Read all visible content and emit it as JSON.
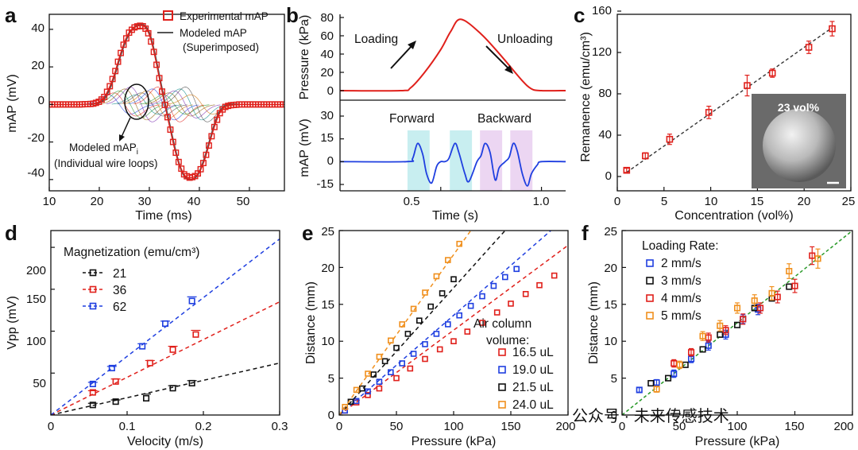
{
  "panels": {
    "a": {
      "label": "a",
      "xlabel": "Time (ms)",
      "ylabel": "mAP (mV)",
      "x_ticks": [
        "10",
        "20",
        "30",
        "40",
        "50"
      ],
      "y_ticks": [
        "40",
        "20",
        "0",
        "-20",
        "-40"
      ],
      "legend": {
        "experimental": "Experimental mAP",
        "modeled_1": "Modeled mAP",
        "modeled_2": "(Superimposed)"
      },
      "annotation_1": "Modeled mAP",
      "annotation_1_sub": "i",
      "annotation_2": "(Individual wire loops)",
      "colors": {
        "experimental": "#e0201b",
        "modeled": "#555555"
      }
    },
    "b": {
      "label": "b",
      "top_ylabel": "Pressure (kPa)",
      "top_ticks": [
        "80",
        "60",
        "40",
        "20",
        "0"
      ],
      "loading": "Loading",
      "unloading": "Unloading",
      "bottom_ylabel": "mAP (mV)",
      "bottom_ticks": [
        "30",
        "15",
        "0",
        "-15"
      ],
      "forward": "Forward",
      "backward": "Backward",
      "xlabel": "Time (s)",
      "x_ticks": [
        "0.5",
        "1.0"
      ],
      "colors": {
        "pressure": "#e0201b",
        "signal": "#1f3fe0",
        "forward_band": "#c8eef0",
        "backward_band": "#ecd6f2"
      }
    },
    "c": {
      "label": "c",
      "xlabel": "Concentration (vol%)",
      "ylabel": "Remanence (emu/cm³)",
      "x_ticks": [
        "0",
        "5",
        "10",
        "15",
        "20",
        "25"
      ],
      "y_ticks": [
        "0",
        "40",
        "80",
        "120",
        "160"
      ],
      "inset_label": "23 vol%",
      "color": "#e0201b"
    },
    "d": {
      "label": "d",
      "xlabel": "Velocity (m/s)",
      "ylabel": "Vpp (mV)",
      "x_ticks": [
        "0",
        "0.1",
        "0.2",
        "0.3"
      ],
      "y_ticks": [
        "50",
        "100",
        "150",
        "200"
      ],
      "legend_title": "Magnetization (emu/cm³)",
      "series_labels": [
        "21",
        "36",
        "62"
      ],
      "colors": [
        "#111111",
        "#e0201b",
        "#1f3fe0"
      ]
    },
    "e": {
      "label": "e",
      "xlabel": "Pressure (kPa)",
      "ylabel": "Distance (mm)",
      "x_ticks": [
        "0",
        "50",
        "100",
        "150",
        "200"
      ],
      "y_ticks": [
        "0",
        "5",
        "10",
        "15",
        "20",
        "25"
      ],
      "legend_title_1": "Air column",
      "legend_title_2": "volume:",
      "series_labels": [
        "16.5 uL",
        "19.0 uL",
        "21.5 uL",
        "24.0 uL"
      ],
      "colors": [
        "#e0201b",
        "#1f3fe0",
        "#111111",
        "#f0901e"
      ]
    },
    "f": {
      "label": "f",
      "xlabel": "Pressure (kPa)",
      "ylabel": "Distance (mm)",
      "x_ticks": [
        "0",
        "50",
        "100",
        "150",
        "200"
      ],
      "y_ticks": [
        "0",
        "5",
        "10",
        "15",
        "20",
        "25"
      ],
      "legend_title": "Loading Rate:",
      "series_labels": [
        "2 mm/s",
        "3 mm/s",
        "4 mm/s",
        "5 mm/s"
      ],
      "colors": [
        "#1f3fe0",
        "#111111",
        "#e0201b",
        "#f0901e"
      ],
      "fit_color": "#2a9a2a"
    }
  },
  "watermark": "公众号 · 未来传感技术",
  "chart_data": [
    {
      "panel": "a",
      "type": "line",
      "title": "",
      "xlabel": "Time (ms)",
      "ylabel": "mAP (mV)",
      "xlim": [
        10,
        57
      ],
      "ylim": [
        -46,
        48
      ],
      "series": [
        {
          "name": "Experimental mAP",
          "x": [
            10,
            12,
            14,
            16,
            18,
            19,
            20,
            21,
            22,
            23,
            24,
            25,
            26,
            27,
            28,
            29,
            30,
            31,
            32,
            33,
            34,
            35,
            36,
            37,
            38,
            39,
            40,
            41,
            42,
            43,
            44,
            45,
            46,
            48,
            50,
            52,
            54,
            56,
            57
          ],
          "y": [
            0,
            0,
            0,
            0,
            0.2,
            0.5,
            1.5,
            4,
            9,
            16,
            25,
            33,
            38.5,
            41,
            42,
            41.5,
            37,
            27,
            14,
            1,
            -11,
            -23,
            -32,
            -37.5,
            -39,
            -38.5,
            -36,
            -30,
            -21,
            -12,
            -5,
            -1.5,
            -0.5,
            0,
            0,
            0,
            0,
            0,
            0
          ]
        },
        {
          "name": "Modeled mAP (Superimposed)",
          "x": [
            18,
            20,
            21,
            22,
            23,
            24,
            25,
            26,
            27,
            28,
            29,
            30,
            31,
            32,
            33,
            34,
            35,
            36,
            37,
            38,
            39,
            40,
            41,
            42,
            43,
            44,
            45,
            46,
            48
          ],
          "y": [
            0,
            1,
            3,
            8,
            15,
            24,
            32,
            38,
            41,
            42.5,
            42,
            38,
            28,
            15,
            2,
            -10,
            -22,
            -32,
            -38,
            -40,
            -39.5,
            -36,
            -29,
            -20,
            -11,
            -4,
            -1,
            0,
            0
          ]
        }
      ]
    },
    {
      "panel": "b-top",
      "type": "line",
      "xlabel": "Time (s)",
      "ylabel": "Pressure (kPa)",
      "xlim": [
        0,
        1.12
      ],
      "ylim": [
        -5,
        90
      ],
      "series": [
        {
          "name": "Pressure",
          "x": [
            0,
            0.3,
            0.35,
            0.42,
            0.5,
            0.55,
            0.6,
            0.7,
            0.8,
            0.9,
            0.95,
            1.0,
            1.12
          ],
          "y": [
            0,
            0,
            3,
            20,
            45,
            65,
            78,
            62,
            38,
            12,
            2,
            0,
            0
          ]
        }
      ]
    },
    {
      "panel": "b-bottom",
      "type": "line",
      "xlabel": "Time (s)",
      "ylabel": "mAP (mV)",
      "xlim": [
        0,
        1.12
      ],
      "ylim": [
        -20,
        38
      ],
      "annotations": [
        "Forward",
        "Backward"
      ],
      "series": [
        {
          "name": "mAP",
          "x": [
            0,
            0.33,
            0.36,
            0.385,
            0.41,
            0.43,
            0.455,
            0.48,
            0.5,
            0.52,
            0.54,
            0.57,
            0.59,
            0.62,
            0.64,
            0.68,
            0.7,
            0.72,
            0.745,
            0.77,
            0.79,
            0.82,
            0.84,
            0.86,
            0.88,
            0.905,
            0.93,
            0.95,
            0.98,
            1.0,
            1.12
          ],
          "y": [
            0,
            0,
            2,
            12,
            5,
            -8,
            -14,
            -3,
            0,
            0,
            2,
            12,
            6,
            -8,
            -13,
            0,
            4,
            12,
            6,
            -12,
            -4,
            0,
            3,
            12,
            7,
            -8,
            -16,
            -8,
            -2,
            0,
            0
          ]
        }
      ]
    },
    {
      "panel": "c",
      "type": "scatter",
      "xlabel": "Concentration (vol%)",
      "ylabel": "Remanence (emu/cm³)",
      "xlim": [
        0,
        25
      ],
      "ylim": [
        -8,
        160
      ],
      "series": [
        {
          "name": "Remanence",
          "x": [
            1,
            3,
            5.6,
            9.8,
            13.9,
            16.6,
            20.5,
            23
          ],
          "y": [
            6,
            20,
            36,
            62,
            88,
            100,
            125,
            143
          ],
          "err": [
            2,
            3,
            5,
            6,
            10,
            4,
            6,
            7
          ]
        }
      ],
      "fit": {
        "x": [
          1,
          23
        ],
        "y": [
          4,
          144
        ]
      },
      "inset": "23 vol%"
    },
    {
      "panel": "d",
      "type": "scatter",
      "xlabel": "Velocity (m/s)",
      "ylabel": "Vpp (mV)",
      "xlim": [
        0,
        0.3
      ],
      "ylim": [
        0,
        220
      ],
      "legend_title": "Magnetization (emu/cm³)",
      "series": [
        {
          "name": "21",
          "x": [
            0.055,
            0.085,
            0.125,
            0.16,
            0.185
          ],
          "y": [
            12,
            16,
            20,
            32,
            38
          ],
          "err": [
            2,
            2,
            5,
            3,
            3
          ],
          "fit": [
            [
              0,
              0
            ],
            [
              0.3,
              62
            ]
          ]
        },
        {
          "name": "36",
          "x": [
            0.055,
            0.085,
            0.13,
            0.16,
            0.19
          ],
          "y": [
            27,
            40,
            62,
            78,
            96
          ],
          "err": [
            2,
            3,
            3,
            4,
            5
          ],
          "fit": [
            [
              0,
              0
            ],
            [
              0.3,
              135
            ]
          ]
        },
        {
          "name": "62",
          "x": [
            0.055,
            0.08,
            0.12,
            0.15,
            0.185
          ],
          "y": [
            37,
            56,
            82,
            109,
            136
          ],
          "err": [
            2,
            2,
            3,
            3,
            5
          ],
          "fit": [
            [
              0,
              0
            ],
            [
              0.3,
              210
            ]
          ]
        }
      ]
    },
    {
      "panel": "e",
      "type": "scatter",
      "xlabel": "Pressure (kPa)",
      "ylabel": "Distance (mm)",
      "xlim": [
        0,
        200
      ],
      "ylim": [
        0,
        25
      ],
      "legend_title": "Air column volume:",
      "series": [
        {
          "name": "16.5 uL",
          "x": [
            5,
            15,
            25,
            35,
            50,
            62,
            75,
            88,
            100,
            112,
            125,
            138,
            150,
            163,
            175,
            188
          ],
          "y": [
            0.6,
            1.7,
            2.7,
            3.6,
            5,
            6.3,
            7.6,
            8.9,
            10,
            11.3,
            12.5,
            13.9,
            15.1,
            16.4,
            17.6,
            18.9
          ],
          "fit": [
            [
              0,
              0
            ],
            [
              200,
              23
            ]
          ]
        },
        {
          "name": "19.0 uL",
          "x": [
            5,
            15,
            25,
            35,
            45,
            55,
            65,
            75,
            85,
            95,
            105,
            115,
            125,
            135,
            145,
            155
          ],
          "y": [
            0.6,
            1.9,
            3.2,
            4.5,
            5.8,
            7,
            8.3,
            9.6,
            11,
            12.3,
            13.5,
            14.8,
            16.1,
            17.5,
            18.7,
            19.8
          ],
          "fit": [
            [
              0,
              0
            ],
            [
              185,
              25
            ]
          ]
        },
        {
          "name": "21.5 uL",
          "x": [
            10,
            20,
            30,
            40,
            50,
            60,
            70,
            80,
            90,
            100
          ],
          "y": [
            1.8,
            3.6,
            5.5,
            7.3,
            9.1,
            11,
            12.8,
            14.7,
            16.5,
            18.4
          ],
          "fit": [
            [
              0,
              0
            ],
            [
              145,
              25
            ]
          ]
        },
        {
          "name": "24.0 uL",
          "x": [
            5,
            15,
            25,
            35,
            45,
            55,
            65,
            75,
            85,
            95,
            105
          ],
          "y": [
            1.1,
            3.4,
            5.6,
            7.9,
            10.1,
            12.3,
            14.4,
            16.6,
            18.8,
            21,
            23.2
          ],
          "fit": [
            [
              0,
              0
            ],
            [
              115,
              25
            ]
          ]
        }
      ]
    },
    {
      "panel": "f",
      "type": "scatter",
      "xlabel": "Pressure (kPa)",
      "ylabel": "Distance (mm)",
      "xlim": [
        0,
        200
      ],
      "ylim": [
        0,
        25
      ],
      "legend_title": "Loading Rate:",
      "series": [
        {
          "name": "2 mm/s",
          "x": [
            15,
            30,
            45,
            60,
            75,
            90,
            105,
            118
          ],
          "y": [
            3.4,
            4.4,
            5.6,
            7.6,
            9.4,
            10.9,
            13,
            14.3
          ],
          "err": [
            0.3,
            0.4,
            0.5,
            0.5,
            0.6,
            0.6,
            0.6,
            0.7
          ]
        },
        {
          "name": "3 mm/s",
          "x": [
            25,
            40,
            55,
            70,
            85,
            100,
            115,
            130,
            145
          ],
          "y": [
            4.3,
            5,
            6.8,
            8.9,
            10.9,
            12.2,
            14.5,
            15.8,
            17.4
          ]
        },
        {
          "name": "4 mm/s",
          "x": [
            45,
            60,
            75,
            90,
            105,
            120,
            135,
            150,
            165
          ],
          "y": [
            7,
            8.5,
            10.5,
            11.5,
            13,
            14.5,
            16,
            17.5,
            21.6
          ],
          "err": [
            0.5,
            0.5,
            0.6,
            0.6,
            0.7,
            0.7,
            0.8,
            0.9,
            1.2
          ]
        },
        {
          "name": "5 mm/s",
          "x": [
            30,
            50,
            70,
            85,
            100,
            115,
            130,
            145,
            170
          ],
          "y": [
            3.5,
            6.8,
            10.7,
            12.1,
            14.5,
            15.5,
            16.5,
            19.5,
            21.2
          ],
          "err": [
            0.4,
            0.5,
            0.6,
            0.7,
            0.7,
            0.8,
            0.9,
            1,
            1.3
          ]
        }
      ],
      "fit": {
        "x": [
          0,
          200
        ],
        "y": [
          0,
          25
        ]
      }
    }
  ]
}
